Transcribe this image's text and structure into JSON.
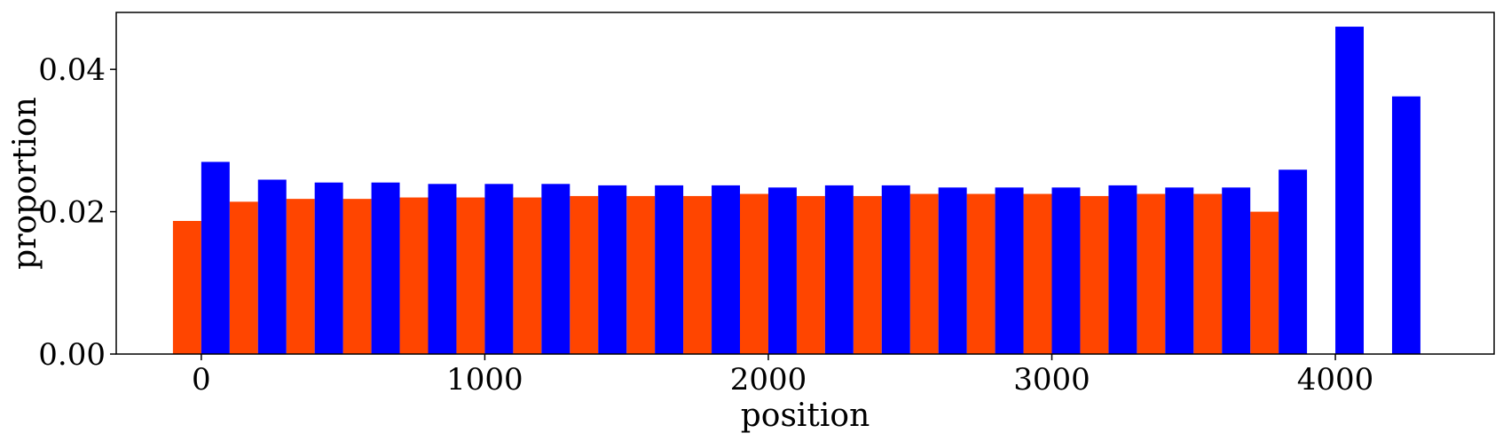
{
  "chart_data": {
    "type": "bar",
    "xlabel": "position",
    "ylabel": "proportion",
    "xlim": [
      -300,
      4560
    ],
    "ylim": [
      0,
      0.048
    ],
    "xticks": [
      0,
      1000,
      2000,
      3000,
      4000
    ],
    "yticks": [
      0.0,
      0.02,
      0.04
    ],
    "xtick_labels": [
      "0",
      "1000",
      "2000",
      "3000",
      "4000"
    ],
    "ytick_labels": [
      "0.00",
      "0.02",
      "0.04"
    ],
    "grid": false,
    "bin_width": 200,
    "series": [
      {
        "color": "#ff4500",
        "x": [
          0,
          200,
          400,
          600,
          800,
          1000,
          1200,
          1400,
          1600,
          1800,
          2000,
          2200,
          2400,
          2600,
          2800,
          3000,
          3200,
          3400,
          3600,
          3800
        ],
        "values": [
          0.0187,
          0.0214,
          0.0218,
          0.0218,
          0.022,
          0.022,
          0.022,
          0.0222,
          0.0222,
          0.0222,
          0.0225,
          0.0222,
          0.0222,
          0.0225,
          0.0225,
          0.0225,
          0.0222,
          0.0225,
          0.0225,
          0.02
        ]
      },
      {
        "color": "#0000ff",
        "x": [
          200,
          400,
          600,
          800,
          1000,
          1200,
          1400,
          1600,
          1800,
          2000,
          2200,
          2400,
          2600,
          2800,
          3000,
          3200,
          3400,
          3600,
          3800,
          4000,
          4200,
          4400
        ],
        "values": [
          0.027,
          0.0245,
          0.0241,
          0.0241,
          0.0239,
          0.0239,
          0.0239,
          0.0237,
          0.0237,
          0.0237,
          0.0234,
          0.0237,
          0.0237,
          0.0234,
          0.0234,
          0.0234,
          0.0237,
          0.0234,
          0.0234,
          0.0259,
          0.046,
          0.0362
        ]
      }
    ]
  }
}
